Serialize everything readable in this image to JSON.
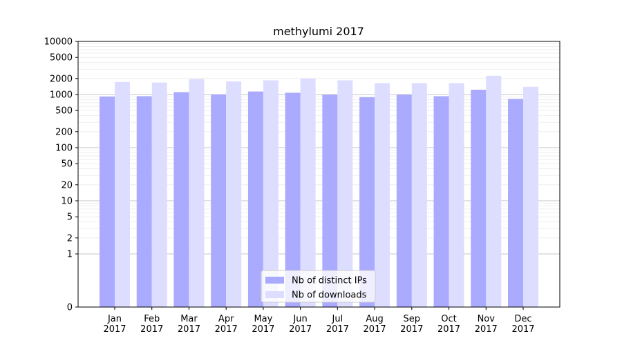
{
  "chart_data": {
    "type": "bar",
    "title": "methylumi 2017",
    "xlabel": "",
    "ylabel": "",
    "yscale": "symlog",
    "ylim": [
      0,
      10000
    ],
    "yticks": [
      0,
      1,
      2,
      5,
      10,
      20,
      50,
      100,
      200,
      500,
      1000,
      2000,
      5000,
      10000
    ],
    "ytick_labels": [
      "0",
      "1",
      "2",
      "5",
      "10",
      "20",
      "50",
      "100",
      "200",
      "500",
      "1000",
      "2000",
      "5000",
      "10000"
    ],
    "grid": true,
    "legend_position": "bottom-center",
    "categories": [
      "Jan 2017",
      "Feb 2017",
      "Mar 2017",
      "Apr 2017",
      "May 2017",
      "Jun 2017",
      "Jul 2017",
      "Aug 2017",
      "Sep 2017",
      "Oct 2017",
      "Nov 2017",
      "Dec 2017"
    ],
    "category_lines": [
      [
        "Jan",
        "2017"
      ],
      [
        "Feb",
        "2017"
      ],
      [
        "Mar",
        "2017"
      ],
      [
        "Apr",
        "2017"
      ],
      [
        "May",
        "2017"
      ],
      [
        "Jun",
        "2017"
      ],
      [
        "Jul",
        "2017"
      ],
      [
        "Aug",
        "2017"
      ],
      [
        "Sep",
        "2017"
      ],
      [
        "Oct",
        "2017"
      ],
      [
        "Nov",
        "2017"
      ],
      [
        "Dec",
        "2017"
      ]
    ],
    "series": [
      {
        "name": "Nb of distinct IPs",
        "color": "#aaaaff",
        "values": [
          920,
          930,
          1110,
          1010,
          1140,
          1080,
          990,
          890,
          990,
          930,
          1230,
          830
        ]
      },
      {
        "name": "Nb of downloads",
        "color": "#ddddff",
        "values": [
          1720,
          1680,
          1950,
          1770,
          1850,
          2000,
          1850,
          1640,
          1640,
          1640,
          2250,
          1400
        ]
      }
    ]
  }
}
